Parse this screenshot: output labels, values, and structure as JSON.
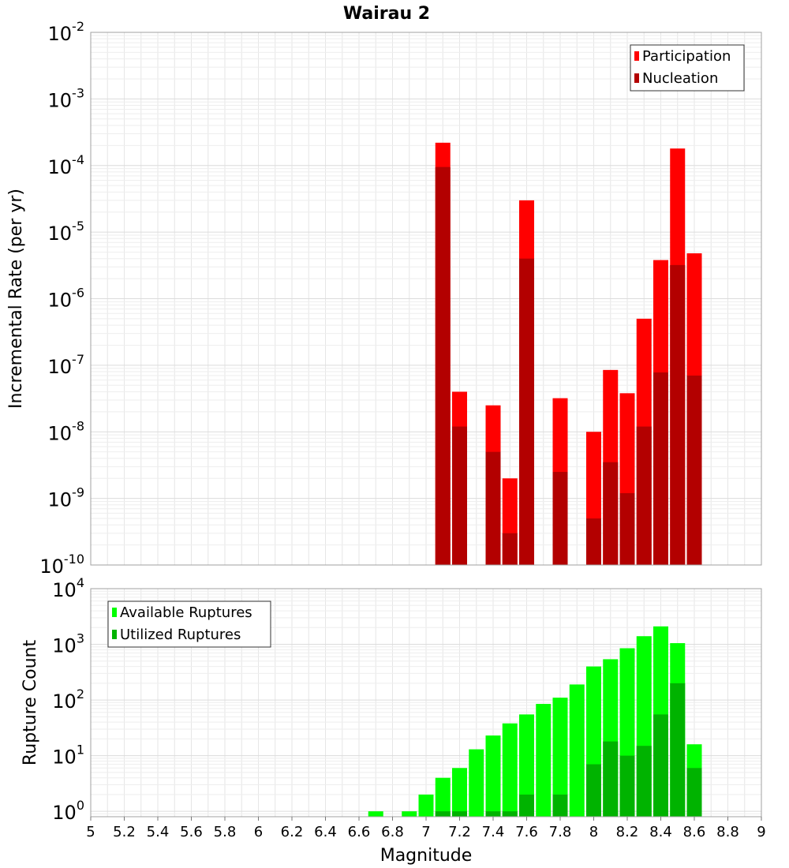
{
  "chart_data": [
    {
      "type": "bar",
      "title": "Wairau 2",
      "ylabel": "Incremental Rate (per yr)",
      "xlabel": "",
      "yscale": "log",
      "ylim": [
        1e-10,
        0.01
      ],
      "xlim": [
        5,
        9
      ],
      "grid": true,
      "legend_position": "top-right",
      "x": [
        7.1,
        7.2,
        7.3,
        7.4,
        7.5,
        7.6,
        7.7,
        7.8,
        7.9,
        8.0,
        8.1,
        8.2,
        8.3,
        8.4,
        8.5,
        8.6,
        8.7,
        8.8,
        8.9
      ],
      "series": [
        {
          "name": "Participation",
          "color": "#ff0000",
          "values": [
            0.00022,
            4e-08,
            null,
            2.5e-08,
            2e-09,
            3e-05,
            null,
            3.2e-08,
            null,
            1e-08,
            8.5e-08,
            3.8e-08,
            5e-07,
            3.8e-06,
            0.00018,
            4.8e-06,
            null,
            null,
            null
          ]
        },
        {
          "name": "Nucleation",
          "color": "#b30000",
          "values": [
            9.5e-05,
            1.2e-08,
            null,
            5e-09,
            3e-10,
            4e-06,
            null,
            2.5e-09,
            null,
            5e-10,
            3.5e-09,
            1.2e-09,
            1.2e-08,
            7.8e-08,
            3.2e-06,
            7e-08,
            null,
            null,
            null
          ]
        }
      ],
      "yticks": [
        {
          "base": "10",
          "exp": "-2"
        },
        {
          "base": "10",
          "exp": "-3"
        },
        {
          "base": "10",
          "exp": "-4"
        },
        {
          "base": "10",
          "exp": "-5"
        },
        {
          "base": "10",
          "exp": "-6"
        },
        {
          "base": "10",
          "exp": "-7"
        },
        {
          "base": "10",
          "exp": "-8"
        },
        {
          "base": "10",
          "exp": "-9"
        },
        {
          "base": "10",
          "exp": "-10"
        }
      ]
    },
    {
      "type": "bar",
      "title": "",
      "ylabel": "Rupture Count",
      "xlabel": "Magnitude",
      "yscale": "log",
      "ylim": [
        0.8,
        10000.0
      ],
      "xlim": [
        5,
        9
      ],
      "grid": true,
      "legend_position": "top-left",
      "x": [
        6.7,
        6.8,
        6.9,
        7.0,
        7.1,
        7.2,
        7.3,
        7.4,
        7.5,
        7.6,
        7.7,
        7.8,
        7.9,
        8.0,
        8.1,
        8.2,
        8.3,
        8.4,
        8.5,
        8.6,
        8.7,
        8.8,
        8.9
      ],
      "series": [
        {
          "name": "Available Ruptures",
          "color": "#00ff00",
          "values": [
            1,
            null,
            1,
            2,
            4,
            6,
            13,
            23,
            38,
            55,
            85,
            110,
            190,
            400,
            540,
            850,
            1400,
            2100,
            1050,
            16,
            null,
            null,
            null
          ]
        },
        {
          "name": "Utilized Ruptures",
          "color": "#00b300",
          "values": [
            null,
            null,
            null,
            null,
            1,
            1,
            null,
            1,
            1,
            2,
            null,
            2,
            null,
            7,
            18,
            10,
            15,
            55,
            200,
            6,
            null,
            null,
            null
          ]
        }
      ],
      "yticks": [
        {
          "base": "10",
          "exp": "4"
        },
        {
          "base": "10",
          "exp": "3"
        },
        {
          "base": "10",
          "exp": "2"
        },
        {
          "base": "10",
          "exp": "1"
        },
        {
          "base": "10",
          "exp": "0"
        }
      ],
      "xticks": [
        "5",
        "5.2",
        "5.4",
        "5.6",
        "5.8",
        "6",
        "6.2",
        "6.4",
        "6.6",
        "6.8",
        "7",
        "7.2",
        "7.4",
        "7.6",
        "7.8",
        "8",
        "8.2",
        "8.4",
        "8.6",
        "8.8",
        "9"
      ]
    }
  ]
}
